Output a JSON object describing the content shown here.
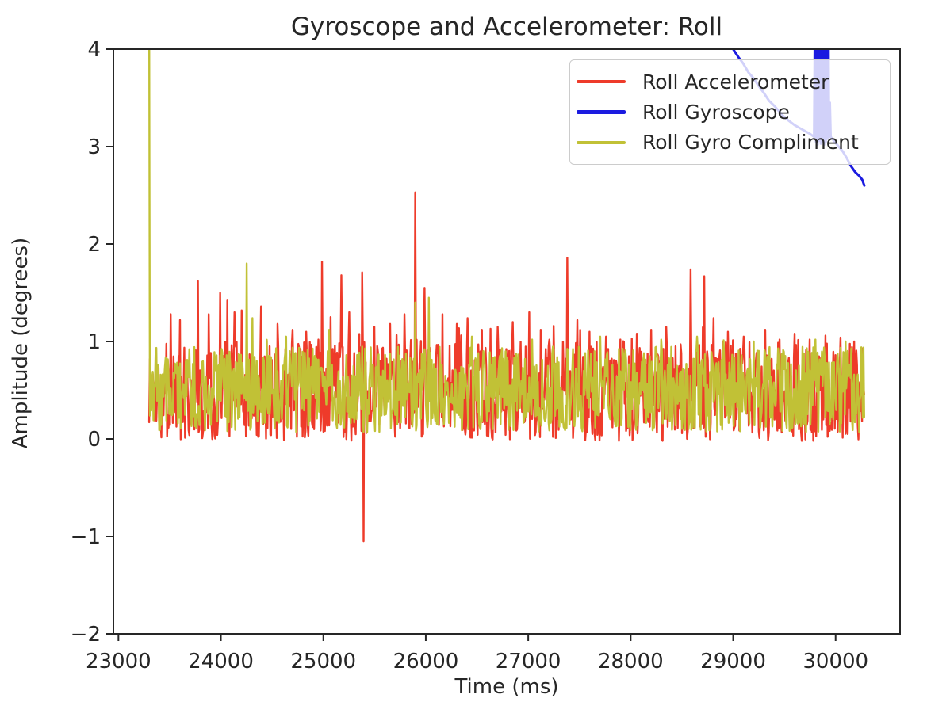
{
  "chart_data": {
    "type": "line",
    "title": "Gyroscope and Accelerometer: Roll",
    "xlabel": "Time (ms)",
    "ylabel": "Amplitude (degrees)",
    "xlim": [
      22951,
      30629
    ],
    "ylim": [
      -2,
      4
    ],
    "x_ticks": [
      23000,
      24000,
      25000,
      26000,
      27000,
      28000,
      29000,
      30000
    ],
    "x_tick_labels": [
      "23000",
      "24000",
      "25000",
      "26000",
      "27000",
      "28000",
      "29000",
      "30000"
    ],
    "y_ticks": [
      -2,
      -1,
      0,
      1,
      2,
      3,
      4
    ],
    "y_tick_labels": [
      "−2",
      "−1",
      "0",
      "1",
      "2",
      "3",
      "4"
    ],
    "grid": false,
    "legend_position": "upper right",
    "axis_color": "#262626",
    "series": [
      {
        "name": "Roll Accelerometer",
        "color": "#ee3b2a",
        "render": "noise",
        "t_start": 23300,
        "t_end": 30280,
        "step_ms": 7,
        "base_min": -0.02,
        "base_max": 1.02,
        "burst_prob": 0.05,
        "burst_min": 0.08,
        "burst_max": 0.3,
        "seed": 1337,
        "spikes": [
          [
            23510,
            1.28
          ],
          [
            23600,
            1.22
          ],
          [
            23775,
            1.62
          ],
          [
            23880,
            1.28
          ],
          [
            23995,
            1.5
          ],
          [
            24060,
            1.42
          ],
          [
            24130,
            1.3
          ],
          [
            24205,
            1.32
          ],
          [
            24395,
            1.36
          ],
          [
            24550,
            1.18
          ],
          [
            24700,
            1.12
          ],
          [
            24830,
            1.1
          ],
          [
            24990,
            1.82
          ],
          [
            25070,
            1.25
          ],
          [
            25175,
            1.68
          ],
          [
            25250,
            1.3
          ],
          [
            25378,
            1.71
          ],
          [
            25390,
            -1.05
          ],
          [
            25500,
            1.15
          ],
          [
            25650,
            1.18
          ],
          [
            25790,
            1.28
          ],
          [
            25900,
            2.53
          ],
          [
            25985,
            1.55
          ],
          [
            26160,
            1.28
          ],
          [
            26300,
            1.18
          ],
          [
            26410,
            1.24
          ],
          [
            26550,
            1.12
          ],
          [
            26700,
            1.15
          ],
          [
            26850,
            1.2
          ],
          [
            27010,
            1.3
          ],
          [
            27120,
            1.12
          ],
          [
            27250,
            1.16
          ],
          [
            27380,
            1.86
          ],
          [
            27480,
            1.22
          ],
          [
            27600,
            1.1
          ],
          [
            27760,
            1.05
          ],
          [
            27900,
            1.02
          ],
          [
            28060,
            1.08
          ],
          [
            28200,
            1.12
          ],
          [
            28350,
            1.15
          ],
          [
            28582,
            1.74
          ],
          [
            28720,
            1.67
          ],
          [
            28810,
            1.24
          ],
          [
            28950,
            1.1
          ],
          [
            29100,
            1.05
          ],
          [
            29310,
            1.12
          ],
          [
            29450,
            1.02
          ],
          [
            29600,
            1.08
          ],
          [
            29750,
            1.02
          ],
          [
            29900,
            1.06
          ],
          [
            30050,
            1.04
          ],
          [
            30180,
            1.0
          ]
        ]
      },
      {
        "name": "Roll Gyroscope",
        "color": "#1b1be0",
        "render": "path",
        "points": [
          [
            28400,
            4.6
          ],
          [
            28950,
            4.28
          ],
          [
            29000,
            4.0
          ],
          [
            29050,
            3.92
          ],
          [
            29100,
            3.85
          ],
          [
            29150,
            3.76
          ],
          [
            29200,
            3.7
          ],
          [
            29250,
            3.62
          ],
          [
            29300,
            3.55
          ],
          [
            29350,
            3.47
          ],
          [
            29400,
            3.42
          ],
          [
            29450,
            3.36
          ],
          [
            29500,
            3.3
          ],
          [
            29550,
            3.26
          ],
          [
            29600,
            3.22
          ],
          [
            29650,
            3.19
          ],
          [
            29700,
            3.16
          ],
          [
            29750,
            3.13
          ],
          [
            29790,
            3.1
          ],
          [
            29800,
            4.55
          ],
          [
            29808,
            3.05
          ],
          [
            29816,
            4.5
          ],
          [
            29824,
            3.02
          ],
          [
            29832,
            4.55
          ],
          [
            29840,
            3.06
          ],
          [
            29848,
            4.5
          ],
          [
            29856,
            3.03
          ],
          [
            29864,
            4.55
          ],
          [
            29872,
            3.05
          ],
          [
            29880,
            4.5
          ],
          [
            29888,
            3.02
          ],
          [
            29896,
            4.55
          ],
          [
            29904,
            3.05
          ],
          [
            29912,
            4.5
          ],
          [
            29920,
            3.08
          ],
          [
            29928,
            4.5
          ],
          [
            29936,
            3.1
          ],
          [
            29944,
            3.45
          ],
          [
            29952,
            3.1
          ],
          [
            29990,
            3.05
          ],
          [
            30030,
            3.0
          ],
          [
            30070,
            2.95
          ],
          [
            30110,
            2.88
          ],
          [
            30150,
            2.8
          ],
          [
            30190,
            2.74
          ],
          [
            30230,
            2.7
          ],
          [
            30260,
            2.66
          ],
          [
            30280,
            2.6
          ]
        ]
      },
      {
        "name": "Roll Gyro Compliment",
        "color": "#c1c136",
        "render": "noise",
        "t_start": 23300,
        "t_end": 30280,
        "step_ms": 7,
        "base_min": 0.07,
        "base_max": 0.95,
        "burst_prob": 0.03,
        "burst_min": 0.03,
        "burst_max": 0.12,
        "seed": 777,
        "start_transient": [
          [
            23300,
            4.6
          ]
        ],
        "spikes": [
          [
            24255,
            1.8
          ],
          [
            24310,
            1.24
          ],
          [
            24640,
            1.05
          ],
          [
            25060,
            1.12
          ],
          [
            25900,
            1.4
          ],
          [
            26030,
            1.45
          ],
          [
            26450,
            1.05
          ],
          [
            27040,
            1.02
          ],
          [
            27700,
            1.05
          ],
          [
            28300,
            1.02
          ],
          [
            28650,
            1.05
          ],
          [
            29200,
            1.0
          ],
          [
            29800,
            1.02
          ],
          [
            30100,
            1.0
          ]
        ]
      }
    ]
  }
}
